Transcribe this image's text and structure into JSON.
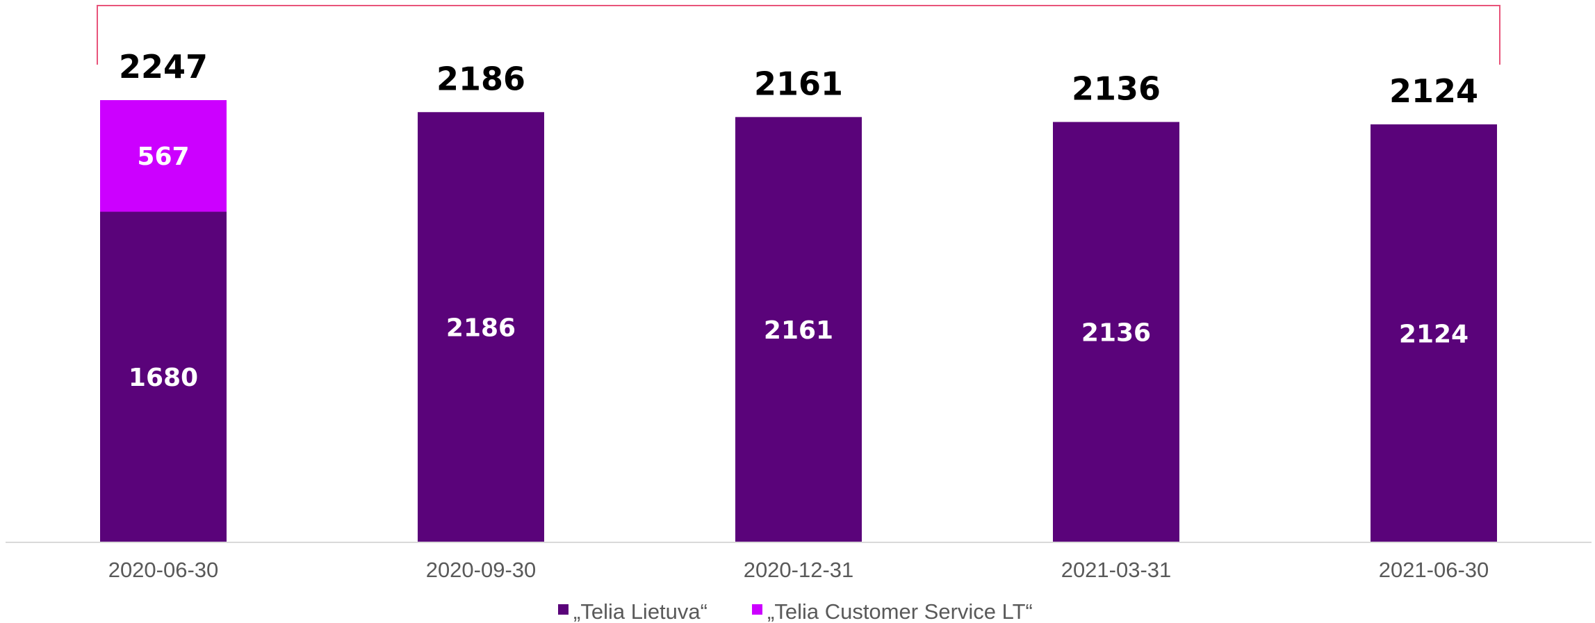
{
  "chart_data": {
    "type": "bar",
    "stacked": true,
    "categories": [
      "2020-06-30",
      "2020-09-30",
      "2020-12-31",
      "2021-03-31",
      "2021-06-30"
    ],
    "series": [
      {
        "name": "„Telia Lietuva“",
        "color": "#5a037a",
        "values": [
          1680,
          2186,
          2161,
          2136,
          2124
        ]
      },
      {
        "name": "„Telia Customer Service LT“",
        "color": "#cc00ff",
        "values": [
          567,
          0,
          0,
          0,
          0
        ]
      }
    ],
    "totals": [
      2247,
      2186,
      2161,
      2136,
      2124
    ],
    "title": "",
    "xlabel": "",
    "ylabel": "",
    "ylim": [
      0,
      2247
    ],
    "grid": false,
    "legend_position": "bottom",
    "bracket_color": "#e8547a"
  }
}
